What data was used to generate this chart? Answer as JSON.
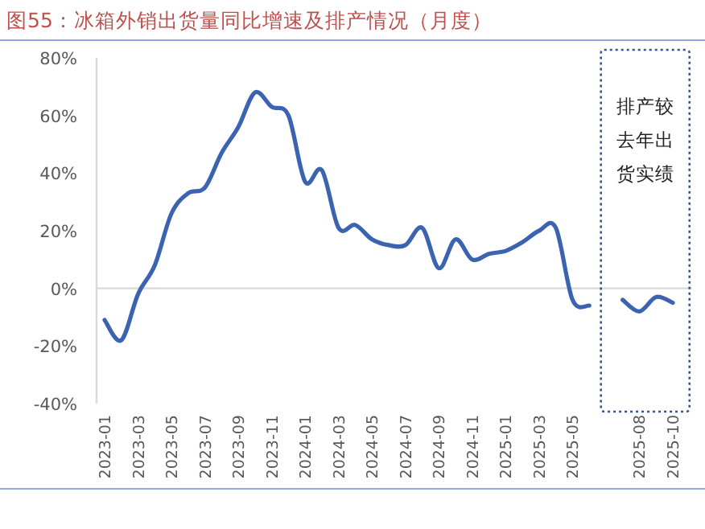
{
  "chart_data": {
    "type": "line",
    "title": "图55：冰箱外销出货量同比增速及排产情况（月度）",
    "categories": [
      "2023-01",
      null,
      "2023-03",
      null,
      "2023-05",
      null,
      "2023-07",
      null,
      "2023-09",
      null,
      "2023-11",
      null,
      "2024-01",
      null,
      "2024-03",
      null,
      "2024-05",
      null,
      "2024-07",
      null,
      "2024-09",
      null,
      "2024-11",
      null,
      "2025-01",
      null,
      "2025-03",
      null,
      "2025-05",
      null,
      null,
      null,
      "2025-08",
      null,
      "2025-10"
    ],
    "series": [
      {
        "color": "#3b63b0",
        "values": [
          -11,
          -18,
          -2,
          8,
          26,
          33,
          35,
          47,
          56,
          68,
          63,
          60,
          37,
          41,
          21,
          22,
          17,
          15,
          15,
          21,
          7,
          17,
          10,
          12,
          13,
          16,
          20,
          21,
          -4,
          -6,
          null,
          -4,
          -8,
          -3,
          -5
        ]
      }
    ],
    "ylim": [
      -40,
      80
    ],
    "yticks": [
      {
        "value": -40,
        "label": "-40%"
      },
      {
        "value": -20,
        "label": "-20%"
      },
      {
        "value": 0,
        "label": "0%"
      },
      {
        "value": 20,
        "label": "20%"
      },
      {
        "value": 40,
        "label": "40%"
      },
      {
        "value": 60,
        "label": "60%"
      },
      {
        "value": 80,
        "label": "80%"
      }
    ],
    "annotations": [
      "排产较去年出货实绩"
    ],
    "marker": "none",
    "line_style": "solid"
  }
}
